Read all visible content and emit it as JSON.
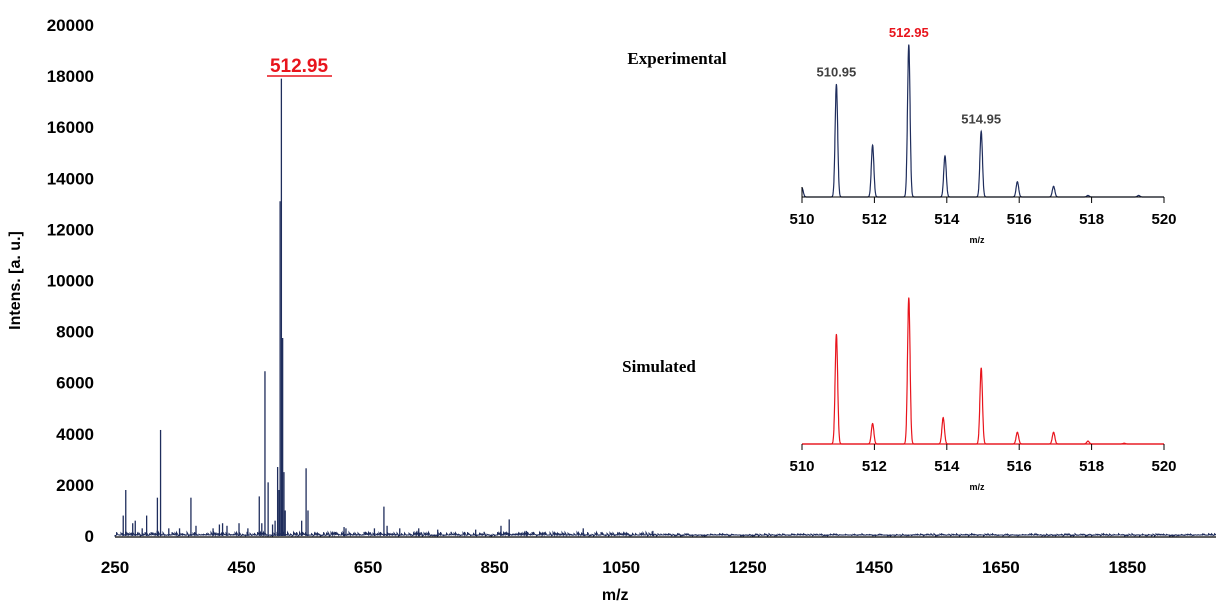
{
  "chart_data": [
    {
      "type": "line",
      "panel": "main",
      "xlabel": "m/z",
      "ylabel": "Intens. [a. u.]",
      "xlim": [
        250,
        1990
      ],
      "ylim": [
        0,
        20000
      ],
      "xticks": [
        "250",
        "450",
        "650",
        "850",
        "1050",
        "1250",
        "1450",
        "1650",
        "1850"
      ],
      "yticks": [
        "0",
        "2000",
        "4000",
        "6000",
        "8000",
        "10000",
        "12000",
        "14000",
        "16000",
        "18000",
        "20000"
      ],
      "annotation": "512.95",
      "color": "#1f2d5c",
      "peaks": [
        {
          "x": 263,
          "y": 800
        },
        {
          "x": 267,
          "y": 1800
        },
        {
          "x": 278,
          "y": 500
        },
        {
          "x": 282,
          "y": 600
        },
        {
          "x": 293,
          "y": 300
        },
        {
          "x": 300,
          "y": 800
        },
        {
          "x": 317,
          "y": 1500
        },
        {
          "x": 322,
          "y": 4150
        },
        {
          "x": 335,
          "y": 300
        },
        {
          "x": 352,
          "y": 300
        },
        {
          "x": 370,
          "y": 1500
        },
        {
          "x": 378,
          "y": 400
        },
        {
          "x": 405,
          "y": 300
        },
        {
          "x": 415,
          "y": 450
        },
        {
          "x": 420,
          "y": 500
        },
        {
          "x": 427,
          "y": 400
        },
        {
          "x": 446,
          "y": 500
        },
        {
          "x": 460,
          "y": 300
        },
        {
          "x": 478,
          "y": 1550
        },
        {
          "x": 482,
          "y": 500
        },
        {
          "x": 487,
          "y": 6450
        },
        {
          "x": 492,
          "y": 2100
        },
        {
          "x": 499,
          "y": 450
        },
        {
          "x": 503,
          "y": 600
        },
        {
          "x": 507,
          "y": 2700
        },
        {
          "x": 509,
          "y": 1800
        },
        {
          "x": 510.95,
          "y": 13100
        },
        {
          "x": 512.95,
          "y": 17900
        },
        {
          "x": 514.95,
          "y": 7750
        },
        {
          "x": 517,
          "y": 2500
        },
        {
          "x": 519,
          "y": 1000
        },
        {
          "x": 545,
          "y": 600
        },
        {
          "x": 552,
          "y": 2650
        },
        {
          "x": 555,
          "y": 1000
        },
        {
          "x": 612,
          "y": 350
        },
        {
          "x": 615,
          "y": 300
        },
        {
          "x": 660,
          "y": 300
        },
        {
          "x": 675,
          "y": 1150
        },
        {
          "x": 680,
          "y": 400
        },
        {
          "x": 700,
          "y": 300
        },
        {
          "x": 730,
          "y": 300
        },
        {
          "x": 760,
          "y": 250
        },
        {
          "x": 820,
          "y": 250
        },
        {
          "x": 860,
          "y": 400
        },
        {
          "x": 873,
          "y": 650
        },
        {
          "x": 900,
          "y": 200
        },
        {
          "x": 990,
          "y": 300
        },
        {
          "x": 1100,
          "y": 200
        }
      ]
    },
    {
      "type": "line",
      "panel": "inset-experimental",
      "title": "Experimental",
      "xlabel": "m/z",
      "xlim": [
        510,
        520
      ],
      "xticks": [
        "510",
        "512",
        "514",
        "516",
        "518",
        "520"
      ],
      "color": "#1f2d5c",
      "peak_labels": [
        {
          "x": 510.95,
          "text": "510.95",
          "color": "#404040"
        },
        {
          "x": 512.95,
          "text": "512.95",
          "color": "#e8141c"
        },
        {
          "x": 514.95,
          "text": "514.95",
          "color": "#404040"
        }
      ],
      "peaks": [
        {
          "x": 510.0,
          "y": 0.06
        },
        {
          "x": 510.95,
          "y": 0.74
        },
        {
          "x": 511.95,
          "y": 0.34
        },
        {
          "x": 512.95,
          "y": 1.0
        },
        {
          "x": 513.95,
          "y": 0.27
        },
        {
          "x": 514.95,
          "y": 0.43
        },
        {
          "x": 515.95,
          "y": 0.1
        },
        {
          "x": 516.95,
          "y": 0.07
        },
        {
          "x": 517.9,
          "y": 0.01
        },
        {
          "x": 519.3,
          "y": 0.01
        }
      ]
    },
    {
      "type": "line",
      "panel": "inset-simulated",
      "title": "Simulated",
      "xlabel": "m/z",
      "xlim": [
        510,
        520
      ],
      "xticks": [
        "510",
        "512",
        "514",
        "516",
        "518",
        "520"
      ],
      "color": "#e8141c",
      "peaks": [
        {
          "x": 510.95,
          "y": 0.75
        },
        {
          "x": 511.95,
          "y": 0.14
        },
        {
          "x": 512.95,
          "y": 1.0
        },
        {
          "x": 513.9,
          "y": 0.18
        },
        {
          "x": 514.95,
          "y": 0.52
        },
        {
          "x": 515.95,
          "y": 0.08
        },
        {
          "x": 516.95,
          "y": 0.08
        },
        {
          "x": 517.9,
          "y": 0.02
        },
        {
          "x": 518.9,
          "y": 0.005
        }
      ]
    }
  ]
}
